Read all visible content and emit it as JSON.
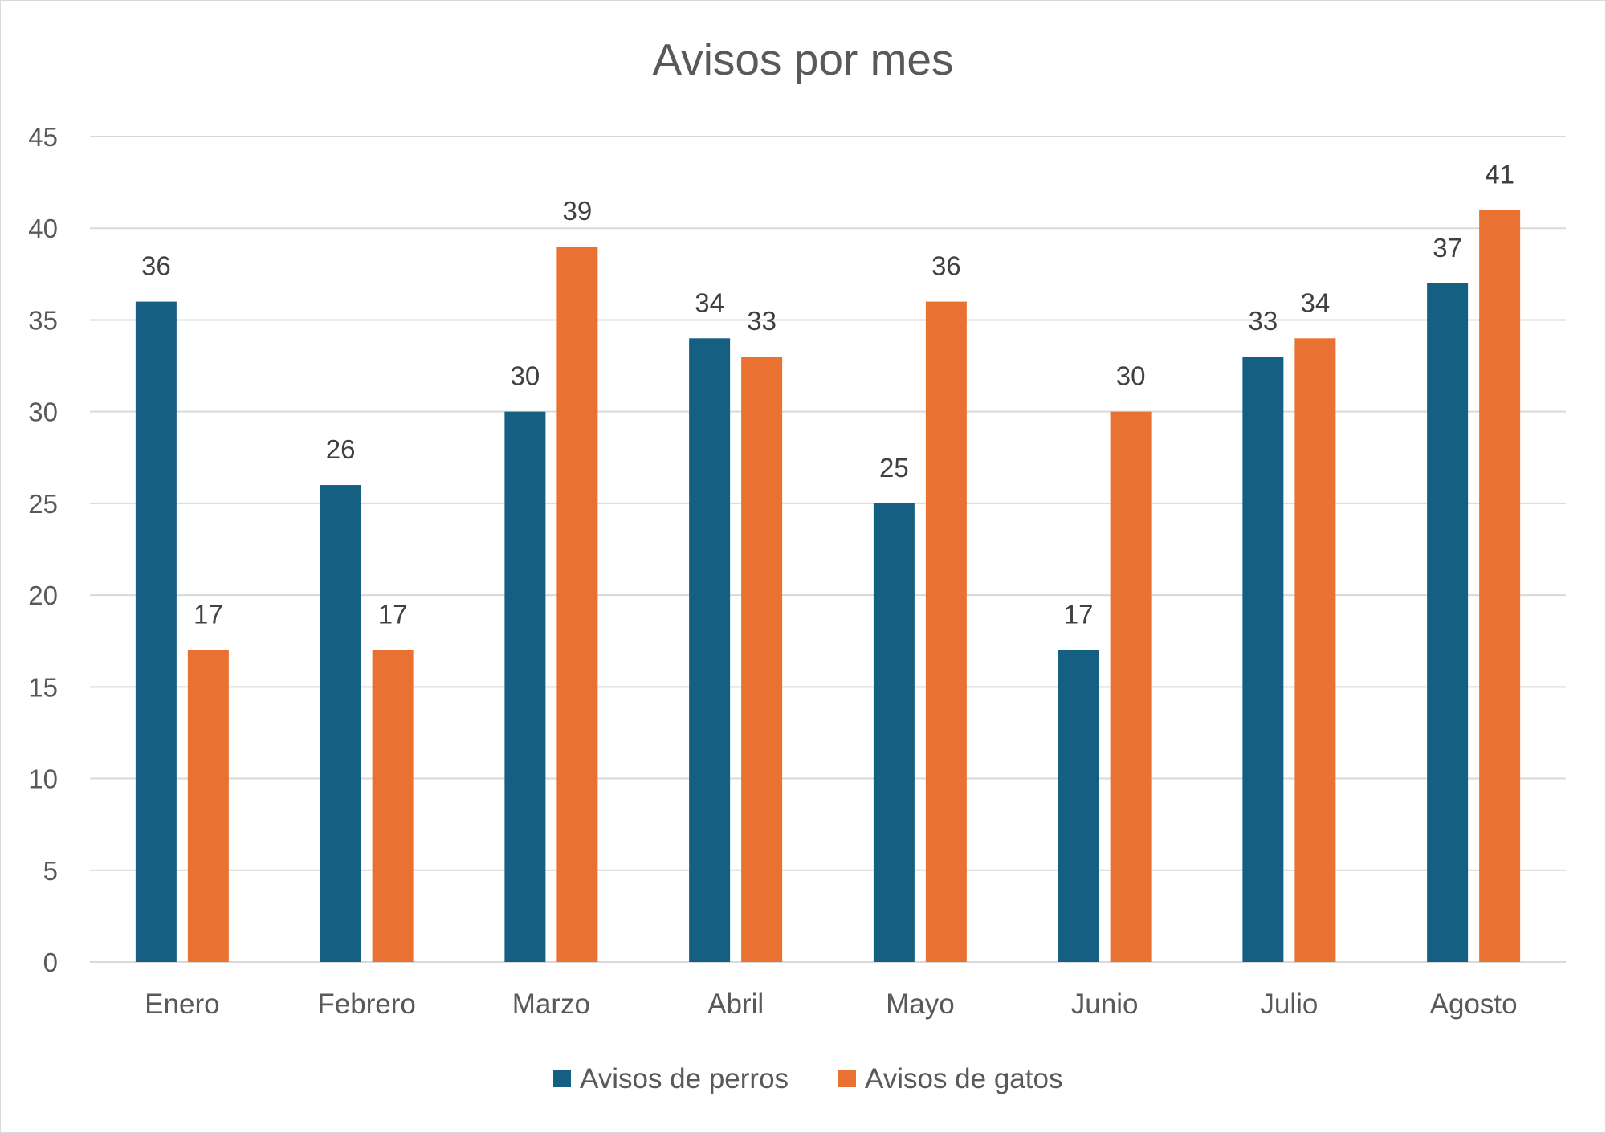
{
  "chart_data": {
    "type": "bar",
    "title": "Avisos por mes",
    "xlabel": "",
    "ylabel": "",
    "ylim": [
      0,
      45
    ],
    "yticks": [
      0,
      5,
      10,
      15,
      20,
      25,
      30,
      35,
      40,
      45
    ],
    "grid": true,
    "legend_position": "bottom",
    "data_labels": true,
    "categories": [
      "Enero",
      "Febrero",
      "Marzo",
      "Abril",
      "Mayo",
      "Junio",
      "Julio",
      "Agosto"
    ],
    "series": [
      {
        "name": "Avisos de perros",
        "color": "#156082",
        "values": [
          36,
          26,
          30,
          34,
          25,
          17,
          33,
          37
        ]
      },
      {
        "name": "Avisos de gatos",
        "color": "#E97132",
        "values": [
          17,
          17,
          39,
          33,
          36,
          30,
          34,
          41
        ]
      }
    ]
  }
}
